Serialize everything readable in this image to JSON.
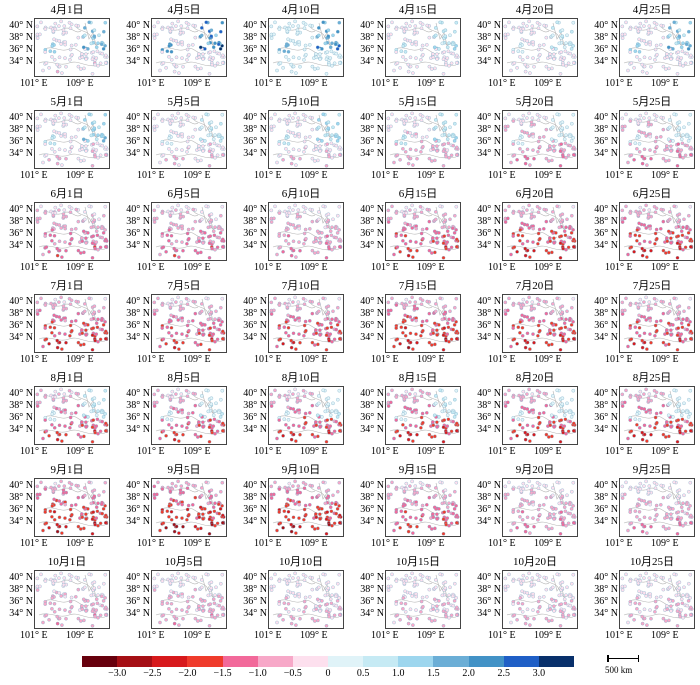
{
  "chart_data": {
    "type": "scatter",
    "panel_titles": [
      [
        "4月1日",
        "4月5日",
        "4月10日",
        "4月15日",
        "4月20日",
        "4月25日"
      ],
      [
        "5月1日",
        "5月5日",
        "5月10日",
        "5月15日",
        "5月20日",
        "5月25日"
      ],
      [
        "6月1日",
        "6月5日",
        "6月10日",
        "6月15日",
        "6月20日",
        "6月25日"
      ],
      [
        "7月1日",
        "7月5日",
        "7月10日",
        "7月15日",
        "7月20日",
        "7月25日"
      ],
      [
        "8月1日",
        "8月5日",
        "8月10日",
        "8月15日",
        "8月20日",
        "8月25日"
      ],
      [
        "9月1日",
        "9月5日",
        "9月10日",
        "9月15日",
        "9月20日",
        "9月25日"
      ],
      [
        "10月1日",
        "10月5日",
        "10月10日",
        "10月15日",
        "10月20日",
        "10月25日"
      ]
    ],
    "y_tick_labels": [
      "40° N",
      "38° N",
      "36° N",
      "34° N"
    ],
    "x_tick_labels": [
      "101° E",
      "109° E"
    ],
    "intensity": [
      [
        -0.4,
        -0.3,
        0.3,
        -0.2,
        -0.2,
        -0.2
      ],
      [
        -0.5,
        -0.5,
        -0.5,
        -0.7,
        -1.0,
        -1.0
      ],
      [
        -1.2,
        -1.2,
        -1.0,
        -1.6,
        -1.8,
        -1.8
      ],
      [
        -1.8,
        -1.6,
        -1.7,
        -2.0,
        -1.8,
        -1.7
      ],
      [
        -1.6,
        -1.6,
        -1.7,
        -1.8,
        -1.8,
        -1.8
      ],
      [
        -2.0,
        -2.2,
        -2.1,
        -1.5,
        -1.0,
        -0.9
      ],
      [
        -0.8,
        -0.8,
        -0.6,
        -0.6,
        -0.6,
        -0.6
      ]
    ],
    "blue_hotspots": [
      [
        1.5,
        2.5,
        2.0,
        0.8,
        0.5,
        1.5
      ],
      [
        1.2,
        0.5,
        1.0,
        0.8,
        0.3,
        0.2
      ],
      [
        0,
        0,
        0,
        0,
        0,
        0
      ],
      [
        0,
        0,
        0,
        0,
        0,
        0
      ],
      [
        0.6,
        0.4,
        0.4,
        0.5,
        0.3,
        0.3
      ],
      [
        0,
        0,
        0,
        0,
        0,
        0
      ],
      [
        0,
        0,
        0,
        0,
        0,
        0
      ]
    ],
    "colorbar": {
      "ticks": [
        "−3.0",
        "−2.5",
        "−2.0",
        "−1.5",
        "−1.0",
        "−0.5",
        "0",
        "0.5",
        "1.0",
        "1.5",
        "2.0",
        "2.5",
        "3.0"
      ],
      "colors": [
        "#67000d",
        "#a50f15",
        "#d7191c",
        "#ef3b2c",
        "#f2699a",
        "#f7a8c8",
        "#fde0ee",
        "#e0f3f8",
        "#c6eaf4",
        "#9dd6ee",
        "#6baed6",
        "#4292c6",
        "#1f5fc6",
        "#08306b"
      ]
    },
    "scale_bar": "500 km"
  }
}
